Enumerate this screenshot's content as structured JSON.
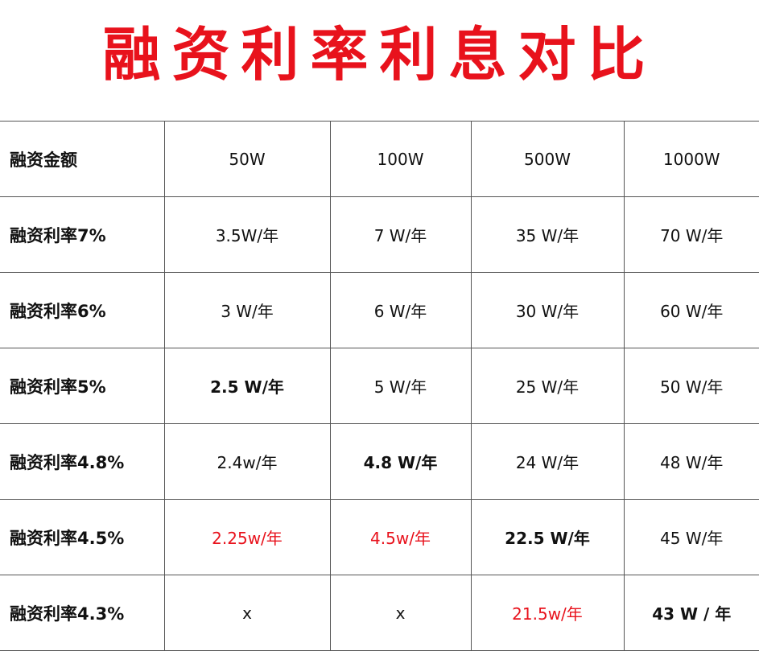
{
  "title": "融资利率利息对比",
  "colors": {
    "title": "#e8121c",
    "highlight": "#e8121c"
  },
  "header": [
    "融资金额",
    "50W",
    "100W",
    "500W",
    "1000W"
  ],
  "rows": [
    {
      "label": "融资利率7%",
      "cells": [
        "3.5W/年",
        "7 W/年",
        "35 W/年",
        "70 W/年"
      ],
      "red": [],
      "bold": []
    },
    {
      "label": "融资利率6%",
      "cells": [
        "3 W/年",
        "6 W/年",
        "30 W/年",
        "60 W/年"
      ],
      "red": [],
      "bold": []
    },
    {
      "label": "融资利率5%",
      "cells": [
        "2.5 W/年",
        "5 W/年",
        "25 W/年",
        "50 W/年"
      ],
      "red": [],
      "bold": [
        0
      ]
    },
    {
      "label": "融资利率4.8%",
      "cells": [
        "2.4w/年",
        "4.8 W/年",
        "24 W/年",
        "48 W/年"
      ],
      "red": [],
      "bold": [
        1
      ]
    },
    {
      "label": "融资利率4.5%",
      "cells": [
        "2.25w/年",
        "4.5w/年",
        "22.5 W/年",
        "45 W/年"
      ],
      "red": [
        0,
        1
      ],
      "bold": [
        2
      ]
    },
    {
      "label": "融资利率4.3%",
      "cells": [
        "x",
        "x",
        "21.5w/年",
        "43 W / 年"
      ],
      "red": [
        2
      ],
      "bold": [
        3
      ]
    }
  ]
}
